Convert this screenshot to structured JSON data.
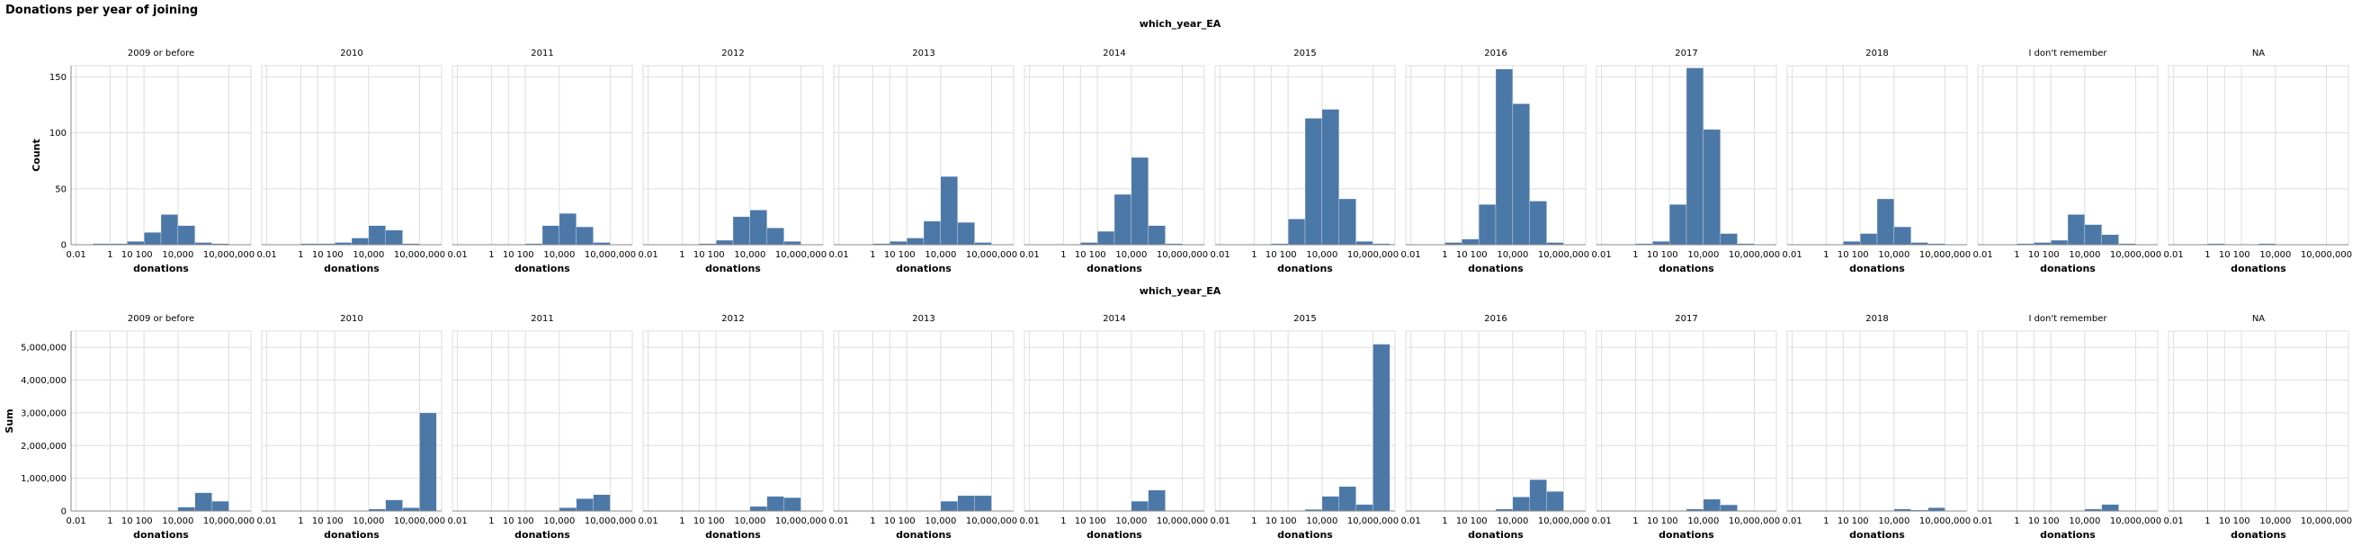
{
  "title": "Donations per year of joining",
  "chart_data": {
    "type": "bar",
    "title": "Donations per year of joining",
    "facet_title": "which_year_EA",
    "facets": [
      "2009 or before",
      "2010",
      "2011",
      "2012",
      "2013",
      "2014",
      "2015",
      "2016",
      "2017",
      "2018",
      "I don't remember",
      "NA"
    ],
    "xlabel": "donations",
    "x_scale": "log",
    "x_ticks": [
      "0.01",
      "1",
      "10",
      "100",
      "10,000",
      "10,000,000"
    ],
    "x_tick_values": [
      0.01,
      1,
      10,
      100,
      10000,
      10000000
    ],
    "bin_edges_log10": [
      -2,
      -1,
      0,
      1,
      2,
      3,
      4,
      5,
      6,
      7,
      8
    ],
    "grid": true,
    "color": "#4c78a8",
    "rows": [
      {
        "ylabel": "Count",
        "ylim": [
          0,
          160
        ],
        "y_ticks": [
          "0",
          "50",
          "100",
          "150"
        ],
        "y_tick_values": [
          0,
          50,
          100,
          150
        ],
        "series": [
          {
            "name": "2009 or before",
            "values": [
              0,
              1,
              1,
              3,
              11,
              27,
              17,
              2,
              1,
              0
            ]
          },
          {
            "name": "2010",
            "values": [
              0,
              0,
              1,
              1,
              2,
              6,
              17,
              13,
              1,
              0
            ]
          },
          {
            "name": "2011",
            "values": [
              0,
              0,
              0,
              0,
              1,
              17,
              28,
              16,
              2,
              0
            ]
          },
          {
            "name": "2012",
            "values": [
              0,
              0,
              0,
              1,
              4,
              25,
              31,
              15,
              3,
              0
            ]
          },
          {
            "name": "2013",
            "values": [
              0,
              0,
              1,
              3,
              6,
              21,
              61,
              20,
              2,
              0
            ]
          },
          {
            "name": "2014",
            "values": [
              0,
              0,
              0,
              2,
              12,
              45,
              78,
              17,
              1,
              0
            ]
          },
          {
            "name": "2015",
            "values": [
              0,
              0,
              0,
              1,
              23,
              113,
              121,
              41,
              3,
              1
            ]
          },
          {
            "name": "2016",
            "values": [
              0,
              0,
              2,
              5,
              36,
              157,
              126,
              39,
              2,
              0
            ]
          },
          {
            "name": "2017",
            "values": [
              0,
              0,
              1,
              3,
              36,
              158,
              103,
              10,
              1,
              0
            ]
          },
          {
            "name": "2018",
            "values": [
              0,
              0,
              0,
              3,
              10,
              41,
              16,
              2,
              1,
              0
            ]
          },
          {
            "name": "I don't remember",
            "values": [
              0,
              0,
              1,
              2,
              4,
              27,
              18,
              9,
              1,
              0
            ]
          },
          {
            "name": "NA",
            "values": [
              0,
              0,
              1,
              0,
              0,
              1,
              0,
              0,
              0,
              0
            ]
          }
        ]
      },
      {
        "ylabel": "Sum",
        "ylim": [
          0,
          5500000
        ],
        "y_ticks": [
          "0",
          "1,000,000",
          "2,000,000",
          "3,000,000",
          "4,000,000",
          "5,000,000"
        ],
        "y_tick_values": [
          0,
          1000000,
          2000000,
          3000000,
          4000000,
          5000000
        ],
        "series": [
          {
            "name": "2009 or before",
            "values": [
              0,
              0,
              0,
              0,
              0,
              0,
              120000,
              560000,
              300000,
              0
            ]
          },
          {
            "name": "2010",
            "values": [
              0,
              0,
              0,
              0,
              0,
              5000,
              60000,
              340000,
              100000,
              3000000
            ]
          },
          {
            "name": "2011",
            "values": [
              0,
              0,
              0,
              0,
              0,
              5000,
              100000,
              380000,
              500000,
              0
            ]
          },
          {
            "name": "2012",
            "values": [
              0,
              0,
              0,
              0,
              0,
              8000,
              140000,
              450000,
              410000,
              0
            ]
          },
          {
            "name": "2013",
            "values": [
              0,
              0,
              0,
              0,
              0,
              10000,
              300000,
              470000,
              470000,
              0
            ]
          },
          {
            "name": "2014",
            "values": [
              0,
              0,
              0,
              0,
              0,
              15000,
              300000,
              640000,
              0,
              0
            ]
          },
          {
            "name": "2015",
            "values": [
              0,
              0,
              0,
              0,
              1000,
              50000,
              450000,
              750000,
              200000,
              5100000
            ]
          },
          {
            "name": "2016",
            "values": [
              0,
              0,
              0,
              0,
              2000,
              60000,
              430000,
              960000,
              600000,
              0
            ]
          },
          {
            "name": "2017",
            "values": [
              0,
              0,
              0,
              0,
              1000,
              60000,
              360000,
              190000,
              0,
              0
            ]
          },
          {
            "name": "2018",
            "values": [
              0,
              0,
              0,
              0,
              0,
              15000,
              60000,
              30000,
              100000,
              0
            ]
          },
          {
            "name": "I don't remember",
            "values": [
              0,
              0,
              0,
              0,
              0,
              10000,
              60000,
              200000,
              0,
              0
            ]
          },
          {
            "name": "NA",
            "values": [
              0,
              0,
              0,
              0,
              0,
              0,
              1000,
              0,
              0,
              0
            ]
          }
        ]
      }
    ]
  }
}
